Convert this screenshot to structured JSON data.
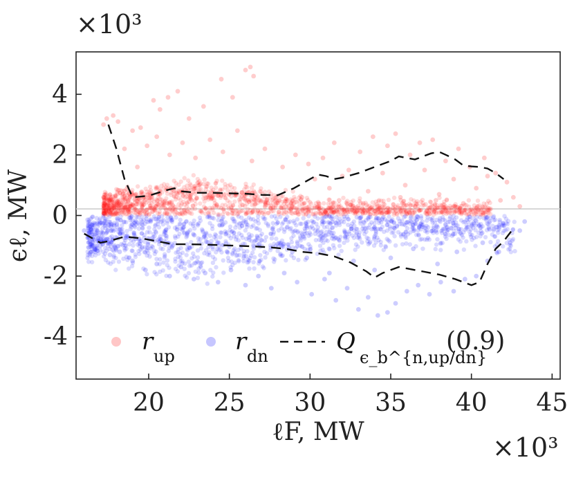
{
  "chart_data": {
    "type": "scatter",
    "title": "",
    "xlabel": "ℓF, MW",
    "ylabel": "ϵℓ, MW",
    "x_multiplier": "×10³",
    "y_multiplier": "×10³",
    "xlim": [
      15.5,
      45.5
    ],
    "ylim": [
      -5.4,
      5.4
    ],
    "x_ticks": [
      20,
      25,
      30,
      35,
      40,
      45
    ],
    "x_tick_labels": [
      "20",
      "25",
      "30",
      "35",
      "40",
      "45"
    ],
    "y_ticks": [
      4,
      2,
      0,
      -2,
      -4
    ],
    "y_tick_labels": [
      "4",
      "2",
      "0",
      "-2",
      "-4"
    ],
    "grid": false,
    "zero_line": true,
    "legend_position": "bottom",
    "series": [
      {
        "name": "r_up",
        "legend_label": "r",
        "legend_sub": "up",
        "type": "scatter",
        "color": "#ff1a1a",
        "points": [
          [
            17.2,
            3.0
          ],
          [
            17.4,
            3.2
          ],
          [
            17.8,
            3.3
          ],
          [
            18.1,
            3.1
          ],
          [
            19.0,
            2.8
          ],
          [
            19.5,
            2.9
          ],
          [
            20.3,
            3.8
          ],
          [
            20.7,
            3.5
          ],
          [
            21.2,
            3.9
          ],
          [
            21.8,
            4.1
          ],
          [
            22.5,
            3.2
          ],
          [
            23.4,
            3.6
          ],
          [
            24.5,
            4.5
          ],
          [
            25.2,
            3.9
          ],
          [
            26.0,
            4.8
          ],
          [
            26.3,
            4.9
          ],
          [
            26.5,
            4.6
          ],
          [
            18.5,
            2.2
          ],
          [
            19.3,
            1.6
          ],
          [
            19.9,
            2.3
          ],
          [
            20.5,
            2.6
          ],
          [
            21.3,
            2.0
          ],
          [
            22.1,
            2.4
          ],
          [
            22.9,
            1.9
          ],
          [
            23.8,
            2.5
          ],
          [
            24.6,
            2.1
          ],
          [
            25.5,
            2.8
          ],
          [
            26.4,
            1.8
          ],
          [
            27.2,
            2.2
          ],
          [
            28.3,
            1.6
          ],
          [
            29.1,
            2.0
          ],
          [
            29.9,
            1.7
          ],
          [
            30.8,
            1.9
          ],
          [
            31.5,
            2.4
          ],
          [
            32.4,
            1.5
          ],
          [
            33.1,
            2.1
          ],
          [
            33.9,
            2.6
          ],
          [
            34.8,
            2.3
          ],
          [
            35.3,
            2.7
          ],
          [
            36.2,
            2.0
          ],
          [
            36.8,
            2.4
          ],
          [
            37.6,
            2.5
          ],
          [
            38.4,
            1.8
          ],
          [
            39.2,
            2.2
          ],
          [
            39.9,
            1.6
          ],
          [
            40.8,
            1.9
          ],
          [
            41.5,
            1.4
          ],
          [
            42.2,
            1.1
          ],
          [
            30.3,
            1.2
          ],
          [
            31.2,
            0.9
          ],
          [
            32.0,
            1.3
          ],
          [
            33.6,
            0.8
          ],
          [
            34.5,
            1.4
          ],
          [
            35.9,
            1.0
          ],
          [
            37.1,
            1.5
          ],
          [
            38.0,
            0.7
          ],
          [
            38.9,
            1.2
          ],
          [
            40.3,
            0.9
          ],
          [
            41.0,
            1.3
          ],
          [
            42.6,
            0.6
          ],
          [
            43.0,
            0.3
          ],
          [
            29.5,
            0.6
          ],
          [
            31.8,
            0.5
          ],
          [
            33.3,
            0.4
          ],
          [
            35.6,
            0.6
          ],
          [
            36.5,
            0.3
          ],
          [
            37.8,
            0.5
          ],
          [
            39.5,
            0.4
          ],
          [
            40.6,
            0.2
          ],
          [
            41.8,
            0.5
          ]
        ]
      },
      {
        "name": "r_dn",
        "legend_label": "r",
        "legend_sub": "dn",
        "type": "scatter",
        "color": "#1a1aff",
        "points": [
          [
            16.0,
            -0.5
          ],
          [
            16.5,
            -0.8
          ],
          [
            17.0,
            -1.0
          ],
          [
            17.6,
            -1.3
          ],
          [
            18.2,
            -1.2
          ],
          [
            19.0,
            -1.5
          ],
          [
            19.8,
            -1.8
          ],
          [
            20.5,
            -1.6
          ],
          [
            21.3,
            -2.0
          ],
          [
            22.0,
            -1.7
          ],
          [
            22.8,
            -2.1
          ],
          [
            23.5,
            -1.9
          ],
          [
            24.3,
            -2.2
          ],
          [
            25.1,
            -1.8
          ],
          [
            26.0,
            -2.3
          ],
          [
            26.8,
            -2.0
          ],
          [
            27.6,
            -2.4
          ],
          [
            28.4,
            -1.9
          ],
          [
            29.2,
            -2.2
          ],
          [
            30.1,
            -2.6
          ],
          [
            30.9,
            -2.1
          ],
          [
            31.6,
            -2.8
          ],
          [
            32.3,
            -2.4
          ],
          [
            33.0,
            -3.1
          ],
          [
            33.6,
            -2.7
          ],
          [
            34.2,
            -3.3
          ],
          [
            34.8,
            -3.2
          ],
          [
            35.3,
            -2.9
          ],
          [
            36.0,
            -2.5
          ],
          [
            36.7,
            -2.3
          ],
          [
            37.4,
            -2.6
          ],
          [
            38.1,
            -2.2
          ],
          [
            38.9,
            -2.5
          ],
          [
            39.6,
            -2.1
          ],
          [
            40.3,
            -2.0
          ],
          [
            41.0,
            -1.5
          ],
          [
            41.7,
            -1.2
          ],
          [
            42.4,
            -0.9
          ],
          [
            43.0,
            -0.5
          ],
          [
            43.3,
            -0.2
          ],
          [
            35.0,
            -1.4
          ],
          [
            36.4,
            -1.1
          ],
          [
            37.9,
            -1.6
          ],
          [
            39.1,
            -1.2
          ],
          [
            40.7,
            -0.9
          ],
          [
            34.0,
            -1.8
          ],
          [
            32.7,
            -1.5
          ],
          [
            31.2,
            -1.9
          ],
          [
            29.8,
            -1.4
          ],
          [
            28.9,
            -1.2
          ]
        ]
      },
      {
        "name": "Q_up",
        "legend_label": "Q",
        "legend_sub": "ϵ_b^{n,up/dn}",
        "legend_suffix": "(0.9)",
        "type": "line",
        "style": "dashed",
        "color": "#111111",
        "x": [
          17.5,
          18.0,
          18.5,
          19.0,
          20.0,
          21.0,
          21.6,
          22.0,
          23.0,
          24.0,
          25.0,
          26.0,
          27.0,
          28.0,
          29.0,
          30.0,
          30.5,
          31.0,
          31.5,
          32.0,
          33.0,
          34.0,
          35.0,
          35.5,
          36.0,
          36.5,
          37.0,
          37.5,
          38.0,
          38.5,
          39.0,
          39.5,
          40.0,
          40.5,
          41.0,
          41.5,
          42.0
        ],
        "values": [
          3.0,
          2.2,
          1.2,
          0.6,
          0.65,
          0.82,
          0.9,
          0.8,
          0.75,
          0.75,
          0.73,
          0.72,
          0.68,
          0.67,
          0.9,
          1.2,
          1.35,
          1.3,
          1.2,
          1.25,
          1.4,
          1.6,
          1.8,
          1.95,
          1.9,
          1.85,
          1.95,
          2.05,
          2.1,
          1.98,
          1.85,
          1.65,
          1.62,
          1.6,
          1.55,
          1.4,
          1.2
        ]
      },
      {
        "name": "Q_dn",
        "type": "line",
        "style": "dashed",
        "color": "#111111",
        "x": [
          16.0,
          17.0,
          17.5,
          18.5,
          19.5,
          20.5,
          21.5,
          22.5,
          23.5,
          24.5,
          25.5,
          26.5,
          27.5,
          28.5,
          29.5,
          30.5,
          31.5,
          32.5,
          33.5,
          34.0,
          34.5,
          35.0,
          35.5,
          36.0,
          37.0,
          38.0,
          39.0,
          40.0,
          40.5,
          41.0,
          41.5,
          42.0,
          42.5
        ],
        "values": [
          -0.6,
          -0.9,
          -0.85,
          -0.7,
          -0.75,
          -0.85,
          -0.95,
          -0.95,
          -0.96,
          -0.98,
          -1.0,
          -1.02,
          -1.05,
          -1.1,
          -1.2,
          -1.25,
          -1.35,
          -1.55,
          -1.85,
          -2.05,
          -1.9,
          -1.8,
          -1.7,
          -1.75,
          -1.85,
          -1.95,
          -2.1,
          -2.3,
          -2.2,
          -1.6,
          -1.1,
          -0.85,
          -0.5
        ]
      }
    ]
  }
}
